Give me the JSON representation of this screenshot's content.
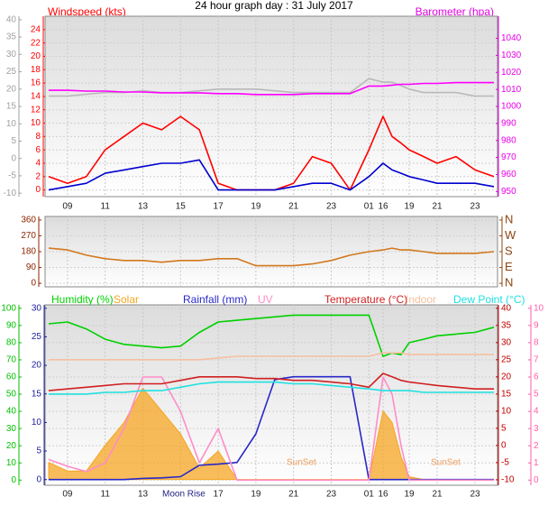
{
  "chart_data": [
    {
      "type": "line",
      "title": "24 hour graph day : 31 July 2017",
      "ylabel": "Windspeed (kts)",
      "y2label": "Barometer (hpa)",
      "categories": [
        null,
        "09",
        null,
        "11",
        null,
        "13",
        null,
        "15",
        null,
        "17",
        null,
        "19",
        null,
        "21",
        null,
        "23",
        null,
        "01",
        "16",
        null,
        null,
        "19",
        null,
        "21",
        null,
        "23",
        null
      ],
      "ylim": [
        -1,
        26
      ],
      "yticks": [
        0,
        2,
        4,
        6,
        8,
        10,
        12,
        14,
        16,
        18,
        20,
        22,
        24
      ],
      "ycolor": "#ff0000",
      "y2lim": [
        947,
        1053
      ],
      "y2ticks": [
        950,
        960,
        970,
        980,
        990,
        1000,
        1010,
        1020,
        1030,
        1040
      ],
      "y2color": "#e600e6",
      "y3lim": [
        -11,
        41
      ],
      "y3ticks": [
        -10,
        -5,
        0,
        5,
        10,
        15,
        20,
        25,
        30,
        35,
        40
      ],
      "y3color": "#a0a0a0",
      "grid": true,
      "series": [
        {
          "color": "#b8b8b8",
          "axis": "y3",
          "values": [
            18,
            18,
            18.5,
            19,
            19,
            19.5,
            19,
            19,
            19.5,
            20,
            20,
            20,
            19.5,
            19,
            19,
            19,
            19,
            23,
            22,
            22,
            21,
            20,
            19,
            19,
            19,
            18,
            18
          ]
        },
        {
          "color": "#ff00ff",
          "axis": "y2",
          "values": [
            1009.5,
            1009.5,
            1009,
            1009,
            1008.5,
            1008.5,
            1008,
            1008,
            1008,
            1007.5,
            1007.5,
            1007,
            1007,
            1007,
            1007.5,
            1007.5,
            1007.5,
            1012,
            1012,
            1012.5,
            1013,
            1013,
            1013.5,
            1013.5,
            1014,
            1014,
            1014
          ]
        },
        {
          "color": "#ff0000",
          "values": [
            2,
            1,
            2,
            6,
            8,
            10,
            9,
            11,
            9,
            1,
            0,
            0,
            0,
            1,
            5,
            4,
            0,
            6,
            11,
            8,
            7,
            6,
            5,
            4,
            5,
            3,
            2
          ]
        },
        {
          "color": "#0000d0",
          "values": [
            0,
            0.5,
            1,
            2.5,
            3,
            3.5,
            4,
            4,
            4.5,
            0,
            0,
            0,
            0,
            0.5,
            1,
            1,
            0,
            2,
            4,
            3,
            2.5,
            2,
            1.5,
            1,
            1,
            1,
            0.5
          ]
        }
      ]
    },
    {
      "type": "line",
      "ylim": [
        -20,
        380
      ],
      "yticks": [
        0,
        90,
        180,
        270,
        360
      ],
      "ycolor": "#8b2500",
      "y2lim": [
        -20,
        380
      ],
      "y2ticks": [
        {
          "value": 0,
          "label": "N"
        },
        {
          "value": 90,
          "label": "E"
        },
        {
          "value": 180,
          "label": "S"
        },
        {
          "value": 270,
          "label": "W"
        },
        {
          "value": 360,
          "label": "N"
        }
      ],
      "y2color": "#8b4513",
      "grid": true,
      "series": [
        {
          "color": "#d2781e",
          "values": [
            200,
            190,
            160,
            140,
            130,
            130,
            120,
            130,
            130,
            140,
            140,
            100,
            100,
            100,
            110,
            130,
            160,
            180,
            190,
            200,
            190,
            190,
            180,
            170,
            170,
            170,
            180
          ]
        }
      ]
    },
    {
      "type": "line",
      "categories": [
        null,
        "09",
        null,
        "11",
        null,
        "13",
        null,
        null,
        null,
        "17",
        null,
        "19",
        null,
        "21",
        null,
        "23",
        null,
        "01",
        "16",
        null,
        null,
        "19",
        null,
        "21",
        null,
        "23",
        null
      ],
      "annotations": [
        "Moon Rise",
        "SunSet",
        "SunSet"
      ],
      "ylim": [
        -3,
        102
      ],
      "yticks": [
        0,
        10,
        20,
        30,
        40,
        50,
        60,
        70,
        80,
        90,
        100
      ],
      "ycolor": "#00c000",
      "y2lim": [
        -11.6,
        41
      ],
      "y2ticks": [
        -10,
        -5,
        0,
        5,
        10,
        15,
        20,
        25,
        30,
        35,
        40
      ],
      "y2color": "#c00000",
      "y3lim": [
        -1,
        30.6
      ],
      "y3ticks": [
        0,
        5,
        10,
        15,
        20,
        25,
        30
      ],
      "y3color": "#20209a",
      "y4lim": [
        -0.3,
        10.2
      ],
      "y4ticks": [
        0,
        1,
        2,
        3,
        4,
        5,
        6,
        7,
        8,
        9,
        10
      ],
      "y4color": "#ff5fa8",
      "grid": true,
      "series": [
        {
          "name": "Humidity (%)",
          "color": "#00d000",
          "values": [
            91,
            92,
            88,
            82,
            79,
            78,
            77,
            78,
            86,
            92,
            93,
            94,
            95,
            96,
            96,
            96,
            96,
            96,
            72,
            74,
            73,
            80,
            82,
            84,
            85,
            86,
            89
          ]
        },
        {
          "name": "Solar",
          "color": "#f5a623",
          "axis": "y3",
          "area": true,
          "values": [
            3,
            1.5,
            1.5,
            6,
            10,
            16,
            12,
            8,
            2,
            5,
            0,
            0,
            0,
            0,
            0,
            0,
            0,
            0,
            12,
            10,
            4,
            0.5,
            0,
            0,
            0,
            0,
            0
          ]
        },
        {
          "name": "Rainfall (mm)",
          "color": "#2828c8",
          "axis": "y3",
          "values": [
            0,
            0,
            0,
            0,
            0,
            0.2,
            0.3,
            0.5,
            2.5,
            2.7,
            3,
            8,
            17.5,
            18,
            18,
            18,
            18,
            0,
            0,
            0,
            0,
            0,
            0,
            0,
            0,
            0,
            0
          ]
        },
        {
          "name": "UV",
          "color": "#ff8cc8",
          "axis": "y4",
          "values": [
            1.2,
            0.8,
            0.5,
            1,
            3,
            6,
            6,
            4,
            1,
            3,
            0,
            0,
            0,
            0,
            0,
            0,
            0,
            0,
            6,
            5,
            2,
            0,
            0,
            0,
            0,
            0,
            0
          ]
        },
        {
          "name": "Temperature (°C)",
          "color": "#d02020",
          "axis": "y2",
          "values": [
            16,
            16.5,
            17,
            17.5,
            18,
            18,
            18,
            19,
            20,
            20,
            20,
            19.5,
            19.5,
            19,
            19,
            18.5,
            18,
            17,
            21,
            20,
            19,
            18.5,
            18,
            17.5,
            17,
            16.5,
            16.5
          ]
        },
        {
          "name": "Indoor",
          "color": "#f5c0a0",
          "axis": "y2",
          "values": [
            25,
            25,
            25,
            25,
            25,
            25,
            25,
            25,
            25,
            25.5,
            26,
            26,
            26,
            26,
            26,
            26,
            26,
            26,
            27,
            27,
            27,
            26.5,
            26.5,
            26.5,
            26.5,
            26.5,
            26.5
          ]
        },
        {
          "name": "Dew Point (°C)",
          "color": "#20e0e0",
          "axis": "y2",
          "values": [
            15,
            15,
            15,
            15.5,
            15.5,
            16,
            16,
            17,
            18,
            18.5,
            18.5,
            18.5,
            18.5,
            18,
            18,
            17.5,
            17,
            16.5,
            16,
            16,
            16,
            16,
            15.5,
            15.5,
            15.5,
            15.5,
            15.5
          ]
        }
      ]
    }
  ]
}
